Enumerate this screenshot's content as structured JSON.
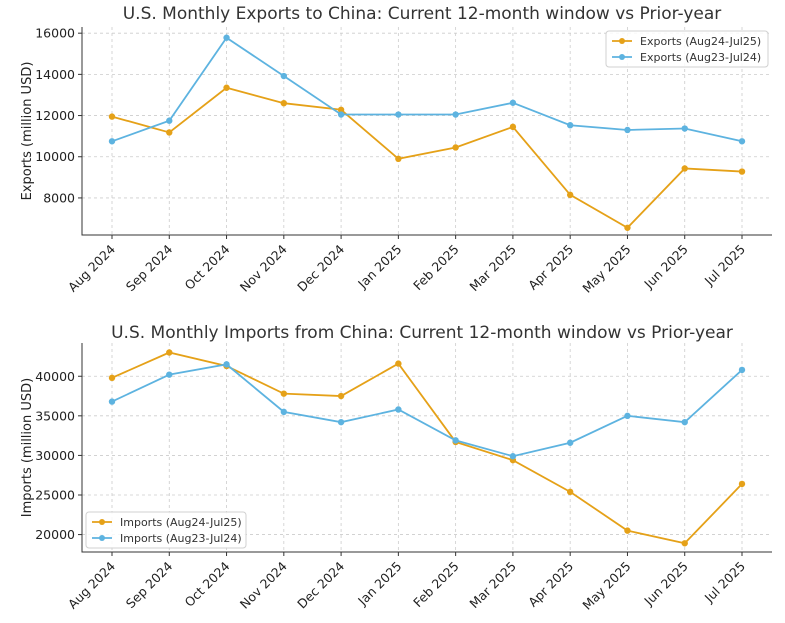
{
  "chart_data": [
    {
      "type": "line",
      "title": "U.S. Monthly Exports to China: Current 12-month window vs Prior-year",
      "xlabel": "",
      "ylabel": "Exports (million USD)",
      "categories": [
        "Aug 2024",
        "Sep 2024",
        "Oct 2024",
        "Nov 2024",
        "Dec 2024",
        "Jan 2025",
        "Feb 2025",
        "Mar 2025",
        "Apr 2025",
        "May 2025",
        "Jun 2025",
        "Jul 2025"
      ],
      "ylim": [
        6200,
        16300
      ],
      "yticks": [
        8000,
        10000,
        12000,
        14000,
        16000
      ],
      "grid": true,
      "legend_position": "top-right",
      "series": [
        {
          "name": "Exports (Aug24-Jul25)",
          "color": "#E5A118",
          "values": [
            11950,
            11180,
            13350,
            12600,
            12280,
            9900,
            10450,
            11450,
            8150,
            6550,
            9430,
            9280
          ]
        },
        {
          "name": "Exports (Aug23-Jul24)",
          "color": "#5DB3E0",
          "values": [
            10750,
            11750,
            15780,
            13920,
            12050,
            12050,
            12050,
            12620,
            11530,
            11300,
            11370,
            10750
          ]
        }
      ]
    },
    {
      "type": "line",
      "title": "U.S. Monthly Imports from China: Current 12-month window vs Prior-year",
      "xlabel": "",
      "ylabel": "Imports (million USD)",
      "categories": [
        "Aug 2024",
        "Sep 2024",
        "Oct 2024",
        "Nov 2024",
        "Dec 2024",
        "Jan 2025",
        "Feb 2025",
        "Mar 2025",
        "Apr 2025",
        "May 2025",
        "Jun 2025",
        "Jul 2025"
      ],
      "ylim": [
        17800,
        44200
      ],
      "yticks": [
        20000,
        25000,
        30000,
        35000,
        40000
      ],
      "grid": true,
      "legend_position": "bottom-left",
      "series": [
        {
          "name": "Imports (Aug24-Jul25)",
          "color": "#E5A118",
          "values": [
            39800,
            43000,
            41300,
            37800,
            37500,
            41600,
            31700,
            29400,
            25400,
            20500,
            18900,
            26400
          ]
        },
        {
          "name": "Imports (Aug23-Jul24)",
          "color": "#5DB3E0",
          "values": [
            36800,
            40200,
            41500,
            35500,
            34200,
            35800,
            31900,
            29900,
            31600,
            35000,
            34200,
            40800
          ]
        }
      ]
    }
  ]
}
